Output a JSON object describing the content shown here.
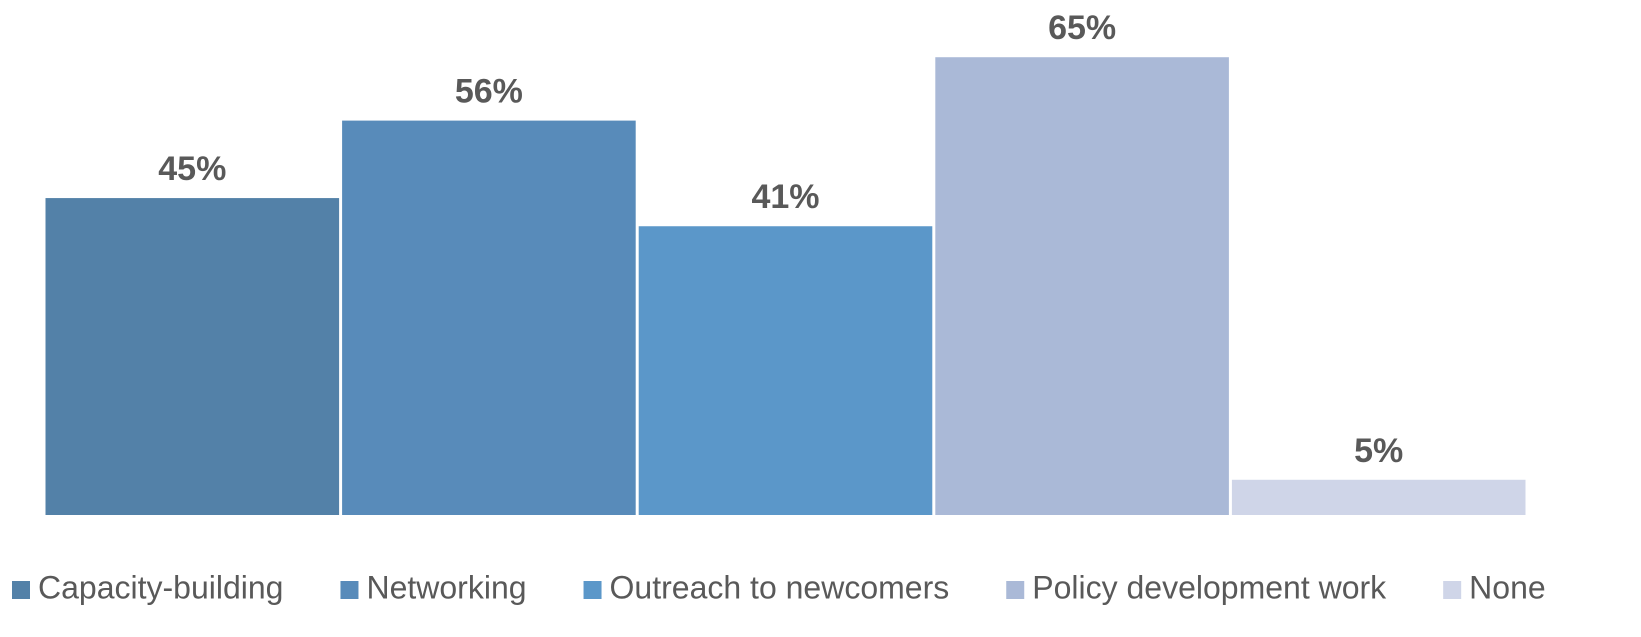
{
  "chart_data": {
    "type": "bar",
    "series": [
      {
        "name": "Capacity-building",
        "color": "#5381a8",
        "values": [
          45
        ],
        "value_labels": [
          "45%"
        ]
      },
      {
        "name": "Networking",
        "color": "#588bba",
        "values": [
          56
        ],
        "value_labels": [
          "56%"
        ]
      },
      {
        "name": "Outreach to newcomers",
        "color": "#5b97c9",
        "values": [
          41
        ],
        "value_labels": [
          "41%"
        ]
      },
      {
        "name": "Policy development work",
        "color": "#aab9d7",
        "values": [
          65
        ],
        "value_labels": [
          "65%"
        ]
      },
      {
        "name": "None",
        "color": "#cfd5e8",
        "values": [
          5
        ],
        "value_labels": [
          "5%"
        ]
      }
    ],
    "ylim": [
      0,
      70
    ],
    "legend": "bottom"
  }
}
